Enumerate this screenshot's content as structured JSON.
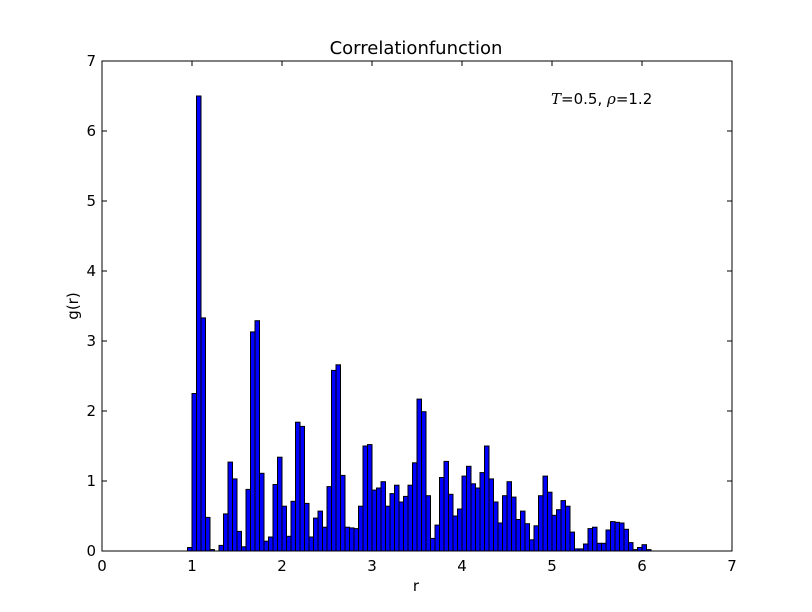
{
  "chart_data": {
    "type": "bar",
    "title": "Correlationfunction",
    "xlabel": "r",
    "ylabel": "g(r)",
    "xlim": [
      0,
      7
    ],
    "ylim": [
      0,
      7
    ],
    "xticks": [
      "0",
      "1",
      "2",
      "3",
      "4",
      "5",
      "6",
      "7"
    ],
    "yticks": [
      "0",
      "1",
      "2",
      "3",
      "4",
      "5",
      "6",
      "7"
    ],
    "annotation": {
      "T_symbol": "T",
      "T_value": "=0.5, ",
      "rho_symbol": "ρ",
      "rho_value": "=1.2"
    },
    "bar_color": "#0000ff",
    "edge_color": "#000000",
    "grid": false,
    "bin_width": 0.05,
    "x_start": 0.95,
    "values": [
      0.05,
      2.25,
      6.5,
      3.33,
      0.48,
      0.02,
      0.0,
      0.08,
      0.53,
      1.27,
      1.03,
      0.28,
      0.06,
      0.88,
      3.13,
      3.29,
      1.11,
      0.14,
      0.2,
      0.95,
      1.34,
      0.64,
      0.21,
      0.71,
      1.84,
      1.78,
      0.68,
      0.2,
      0.47,
      0.57,
      0.34,
      0.92,
      2.58,
      2.66,
      1.08,
      0.34,
      0.33,
      0.32,
      0.64,
      1.5,
      1.52,
      0.87,
      0.9,
      0.99,
      0.64,
      0.82,
      0.94,
      0.7,
      0.78,
      0.94,
      1.26,
      2.17,
      1.99,
      0.79,
      0.18,
      0.37,
      1.05,
      1.28,
      0.81,
      0.5,
      0.6,
      1.07,
      1.21,
      0.96,
      0.9,
      1.12,
      1.5,
      1.03,
      0.7,
      0.4,
      0.79,
      0.99,
      0.77,
      0.45,
      0.57,
      0.39,
      0.16,
      0.36,
      0.79,
      1.07,
      0.84,
      0.51,
      0.59,
      0.72,
      0.64,
      0.27,
      0.03,
      0.03,
      0.1,
      0.32,
      0.34,
      0.11,
      0.11,
      0.3,
      0.42,
      0.41,
      0.4,
      0.31,
      0.12,
      0.02,
      0.05,
      0.09,
      0.02
    ]
  }
}
